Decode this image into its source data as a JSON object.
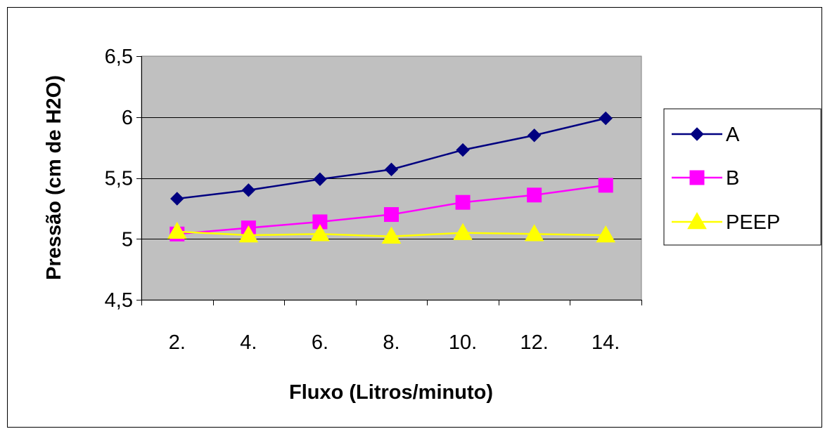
{
  "chart_data": {
    "type": "line",
    "title": "",
    "xlabel": "Fluxo (Litros/minuto)",
    "ylabel": "Pressão (cm de H2O)",
    "categories": [
      "2.",
      "4.",
      "6.",
      "8.",
      "10.",
      "12.",
      "14."
    ],
    "x_values": [
      2,
      4,
      6,
      8,
      10,
      12,
      14
    ],
    "ylim": [
      4.5,
      6.5
    ],
    "y_ticks": [
      "4,5",
      "5",
      "5,5",
      "6",
      "6,5"
    ],
    "y_tick_values": [
      4.5,
      5,
      5.5,
      6,
      6.5
    ],
    "grid": "horizontal",
    "plot_background": "#c0c0c0",
    "legend_position": "right",
    "series": [
      {
        "name": "A",
        "marker": "diamond",
        "line_color": "#000080",
        "marker_color": "#000080",
        "values": [
          5.33,
          5.4,
          5.49,
          5.57,
          5.73,
          5.85,
          5.99
        ]
      },
      {
        "name": "B",
        "marker": "square",
        "line_color": "#ff00ff",
        "marker_color": "#ff00ff",
        "values": [
          5.04,
          5.09,
          5.14,
          5.2,
          5.3,
          5.36,
          5.44
        ]
      },
      {
        "name": "PEEP",
        "marker": "triangle",
        "line_color": "#ffff00",
        "marker_color": "#ffff00",
        "values": [
          5.06,
          5.03,
          5.04,
          5.02,
          5.05,
          5.04,
          5.03
        ]
      }
    ]
  }
}
